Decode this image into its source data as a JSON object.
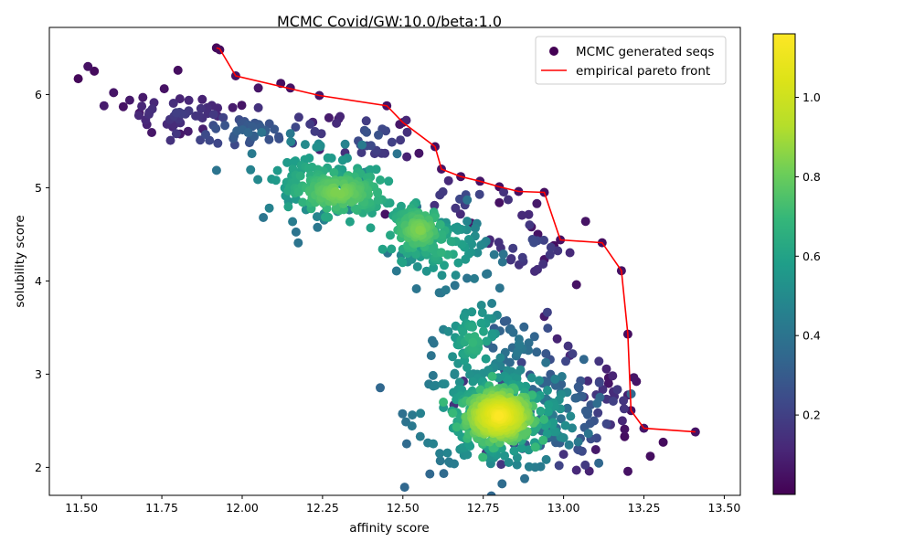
{
  "chart_data": {
    "type": "scatter",
    "title": "MCMC Covid/GW:10.0/beta:1.0",
    "xlabel": "affinity score",
    "ylabel": "solubility score",
    "xlim": [
      11.4,
      13.55
    ],
    "ylim": [
      1.7,
      6.72
    ],
    "xticks": [
      "11.50",
      "11.75",
      "12.00",
      "12.25",
      "12.50",
      "12.75",
      "13.00",
      "13.25",
      "13.50"
    ],
    "xtick_values": [
      11.5,
      11.75,
      12.0,
      12.25,
      12.5,
      12.75,
      13.0,
      13.25,
      13.5
    ],
    "yticks": [
      "2",
      "3",
      "4",
      "5",
      "6"
    ],
    "ytick_values": [
      2,
      3,
      4,
      5,
      6
    ],
    "grid": false,
    "legend": {
      "placement": "top-right",
      "entries": [
        {
          "label": "MCMC generated seqs",
          "marker": "dot",
          "color": "#440154"
        },
        {
          "label": "empirical pareto front",
          "marker": "line",
          "color": "#ff0000"
        }
      ]
    },
    "colorbar": {
      "colormap": "viridis",
      "range": [
        0.0,
        1.16
      ],
      "ticks": [
        "0.2",
        "0.4",
        "0.6",
        "0.8",
        "1.0"
      ],
      "tick_values": [
        0.2,
        0.4,
        0.6,
        0.8,
        1.0
      ]
    },
    "series": [
      {
        "name": "MCMC generated seqs",
        "type": "scatter",
        "clusters": [
          {
            "cx": 12.8,
            "cy": 2.55,
            "sx": 0.05,
            "sy": 0.13,
            "n": 420,
            "density_color": [
              0.7,
              1.16
            ]
          },
          {
            "cx": 12.8,
            "cy": 2.55,
            "sx": 0.13,
            "sy": 0.3,
            "n": 260,
            "density_color": [
              0.35,
              0.8
            ]
          },
          {
            "cx": 12.95,
            "cy": 2.6,
            "sx": 0.1,
            "sy": 0.3,
            "n": 90,
            "density_color": [
              0.15,
              0.45
            ]
          },
          {
            "cx": 12.3,
            "cy": 4.95,
            "sx": 0.07,
            "sy": 0.12,
            "n": 170,
            "density_color": [
              0.6,
              0.85
            ]
          },
          {
            "cx": 12.22,
            "cy": 5.1,
            "sx": 0.1,
            "sy": 0.22,
            "n": 90,
            "density_color": [
              0.4,
              0.7
            ]
          },
          {
            "cx": 12.55,
            "cy": 4.55,
            "sx": 0.04,
            "sy": 0.12,
            "n": 110,
            "density_color": [
              0.6,
              0.85
            ]
          },
          {
            "cx": 12.62,
            "cy": 4.35,
            "sx": 0.07,
            "sy": 0.2,
            "n": 90,
            "density_color": [
              0.4,
              0.7
            ]
          },
          {
            "cx": 12.72,
            "cy": 3.35,
            "sx": 0.05,
            "sy": 0.25,
            "n": 70,
            "density_color": [
              0.4,
              0.7
            ]
          },
          {
            "cx": 12.85,
            "cy": 3.3,
            "sx": 0.06,
            "sy": 0.2,
            "n": 30,
            "density_color": [
              0.2,
              0.45
            ]
          },
          {
            "cx": 12.02,
            "cy": 5.6,
            "sx": 0.1,
            "sy": 0.1,
            "n": 45,
            "density_color": [
              0.15,
              0.35
            ]
          },
          {
            "cx": 11.8,
            "cy": 5.8,
            "sx": 0.09,
            "sy": 0.1,
            "n": 40,
            "density_color": [
              0.05,
              0.2
            ]
          },
          {
            "cx": 12.4,
            "cy": 5.55,
            "sx": 0.06,
            "sy": 0.12,
            "n": 25,
            "density_color": [
              0.1,
              0.3
            ]
          },
          {
            "cx": 12.9,
            "cy": 4.4,
            "sx": 0.08,
            "sy": 0.2,
            "n": 25,
            "density_color": [
              0.05,
              0.25
            ]
          },
          {
            "cx": 12.7,
            "cy": 4.9,
            "sx": 0.1,
            "sy": 0.12,
            "n": 15,
            "density_color": [
              0.05,
              0.25
            ]
          },
          {
            "cx": 13.1,
            "cy": 2.6,
            "sx": 0.06,
            "sy": 0.3,
            "n": 18,
            "density_color": [
              0.05,
              0.2
            ]
          }
        ],
        "explicit_points": [
          [
            11.49,
            6.17,
            0.02
          ],
          [
            11.52,
            6.3,
            0.05
          ],
          [
            11.54,
            6.25,
            0.03
          ],
          [
            11.57,
            5.88,
            0.08
          ],
          [
            11.6,
            6.02,
            0.06
          ],
          [
            11.63,
            5.87,
            0.05
          ],
          [
            11.65,
            5.94,
            0.07
          ],
          [
            11.68,
            5.8,
            0.06
          ],
          [
            11.8,
            6.26,
            0.04
          ],
          [
            11.92,
            6.5,
            0.02
          ],
          [
            11.93,
            6.48,
            0.03
          ],
          [
            11.98,
            6.2,
            0.05
          ],
          [
            12.05,
            6.07,
            0.06
          ],
          [
            12.12,
            6.12,
            0.04
          ],
          [
            12.15,
            6.07,
            0.05
          ],
          [
            12.24,
            5.99,
            0.06
          ],
          [
            12.27,
            5.75,
            0.08
          ],
          [
            12.3,
            5.74,
            0.07
          ],
          [
            12.45,
            5.88,
            0.05
          ],
          [
            12.49,
            5.68,
            0.06
          ],
          [
            12.5,
            5.7,
            0.04
          ],
          [
            12.55,
            5.37,
            0.06
          ],
          [
            12.6,
            5.44,
            0.04
          ],
          [
            12.62,
            5.2,
            0.06
          ],
          [
            12.68,
            5.12,
            0.05
          ],
          [
            12.74,
            5.07,
            0.06
          ],
          [
            12.8,
            5.01,
            0.04
          ],
          [
            12.86,
            4.96,
            0.05
          ],
          [
            12.94,
            4.95,
            0.04
          ],
          [
            12.99,
            4.44,
            0.05
          ],
          [
            13.12,
            4.41,
            0.04
          ],
          [
            13.18,
            4.11,
            0.05
          ],
          [
            13.2,
            3.43,
            0.04
          ],
          [
            13.21,
            2.61,
            0.05
          ],
          [
            13.25,
            2.42,
            0.06
          ],
          [
            13.27,
            2.12,
            0.04
          ],
          [
            13.31,
            2.27,
            0.03
          ],
          [
            13.41,
            2.38,
            0.05
          ],
          [
            12.8,
            4.84,
            0.05
          ],
          [
            12.9,
            4.58,
            0.06
          ],
          [
            12.92,
            4.5,
            0.05
          ],
          [
            12.97,
            4.38,
            0.04
          ],
          [
            12.94,
            4.23,
            0.06
          ],
          [
            13.04,
            3.96,
            0.05
          ],
          [
            12.94,
            3.62,
            0.08
          ],
          [
            12.98,
            3.38,
            0.1
          ],
          [
            13.02,
            3.2,
            0.12
          ],
          [
            13.14,
            2.96,
            0.05
          ],
          [
            13.14,
            2.9,
            0.06
          ],
          [
            13.19,
            2.41,
            0.05
          ],
          [
            13.19,
            2.33,
            0.04
          ],
          [
            13.14,
            2.46,
            0.08
          ],
          [
            13.1,
            2.19,
            0.07
          ],
          [
            13.08,
            1.96,
            0.1
          ],
          [
            13.04,
            1.97,
            0.12
          ],
          [
            13.0,
            2.14,
            0.15
          ]
        ]
      },
      {
        "name": "empirical pareto front",
        "type": "line",
        "color": "#ff0000",
        "points": [
          [
            11.92,
            6.5
          ],
          [
            11.93,
            6.49
          ],
          [
            11.98,
            6.2
          ],
          [
            12.24,
            5.99
          ],
          [
            12.45,
            5.88
          ],
          [
            12.5,
            5.7
          ],
          [
            12.6,
            5.44
          ],
          [
            12.62,
            5.2
          ],
          [
            12.68,
            5.12
          ],
          [
            12.74,
            5.07
          ],
          [
            12.8,
            5.01
          ],
          [
            12.86,
            4.96
          ],
          [
            12.94,
            4.95
          ],
          [
            12.99,
            4.44
          ],
          [
            13.12,
            4.41
          ],
          [
            13.18,
            4.11
          ],
          [
            13.2,
            3.43
          ],
          [
            13.21,
            2.61
          ],
          [
            13.25,
            2.42
          ],
          [
            13.41,
            2.38
          ]
        ]
      }
    ]
  }
}
